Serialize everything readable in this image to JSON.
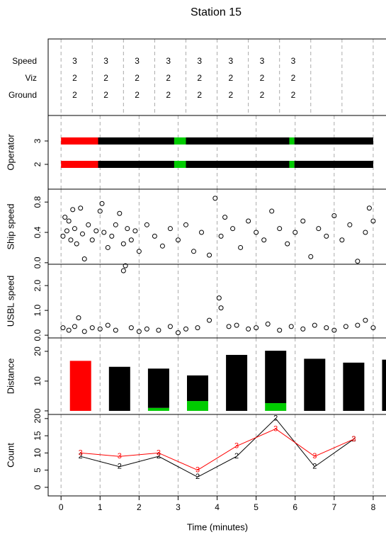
{
  "title": "Station 15",
  "chart_data": [
    {
      "type": "text-grid",
      "rows": [
        "Speed",
        "Viz",
        "Ground"
      ],
      "x": [
        0.35,
        1.15,
        1.95,
        2.75,
        3.55,
        4.35,
        5.15,
        5.95
      ],
      "values": [
        [
          3,
          3,
          3,
          3,
          3,
          3,
          3,
          3
        ],
        [
          2,
          2,
          2,
          2,
          2,
          2,
          2,
          2
        ],
        [
          2,
          2,
          2,
          2,
          2,
          2,
          2,
          2
        ]
      ],
      "xlim": [
        -0.33,
        8.31
      ],
      "vlines": [
        0,
        0.8,
        1.6,
        2.4,
        3.2,
        4,
        4.8,
        5.6,
        6.4,
        7.2,
        8
      ]
    },
    {
      "type": "segments",
      "ylabel": "Operator",
      "ylim": [
        0.94,
        4.09
      ],
      "yticks": [
        2,
        3
      ],
      "xlim": [
        -0.33,
        8.31
      ],
      "vlines": [
        0,
        1,
        2,
        3,
        4,
        5,
        6,
        7,
        8
      ],
      "rows": [
        {
          "y": 3,
          "segments": [
            {
              "start": 0,
              "end": 0.95,
              "color": "#ff0000"
            },
            {
              "start": 0.95,
              "end": 2.9,
              "color": "#000000"
            },
            {
              "start": 2.9,
              "end": 3.2,
              "color": "#00cc00"
            },
            {
              "start": 3.2,
              "end": 5.85,
              "color": "#000000"
            },
            {
              "start": 5.85,
              "end": 5.98,
              "color": "#00cc00"
            },
            {
              "start": 5.98,
              "end": 8,
              "color": "#000000"
            }
          ]
        },
        {
          "y": 2,
          "segments": [
            {
              "start": 0,
              "end": 0.95,
              "color": "#ff0000"
            },
            {
              "start": 0.95,
              "end": 2.9,
              "color": "#000000"
            },
            {
              "start": 2.9,
              "end": 3.2,
              "color": "#00cc00"
            },
            {
              "start": 3.2,
              "end": 5.85,
              "color": "#000000"
            },
            {
              "start": 5.85,
              "end": 5.98,
              "color": "#00cc00"
            },
            {
              "start": 5.98,
              "end": 8,
              "color": "#000000"
            }
          ]
        }
      ]
    },
    {
      "type": "scatter",
      "ylabel": "Ship speed",
      "ylim": [
        -0.02,
        0.97
      ],
      "yticks": [
        {
          "value": 0,
          "label": "0.0"
        },
        0.4,
        0.8
      ],
      "xlim": [
        -0.33,
        8.31
      ],
      "vlines": [
        0,
        1,
        2,
        3,
        4,
        5,
        6,
        7,
        8
      ],
      "color": "#000000",
      "x": [
        0.05,
        0.1,
        0.15,
        0.2,
        0.25,
        0.3,
        0.35,
        0.4,
        0.5,
        0.55,
        0.6,
        0.7,
        0.8,
        0.9,
        1.0,
        1.05,
        1.1,
        1.2,
        1.3,
        1.4,
        1.5,
        1.6,
        1.7,
        1.8,
        1.9,
        2.0,
        2.2,
        2.4,
        2.6,
        2.8,
        3.0,
        3.2,
        3.4,
        3.6,
        3.8,
        3.95,
        4.1,
        4.2,
        4.4,
        4.6,
        4.8,
        5.0,
        5.2,
        5.4,
        5.6,
        5.8,
        6.0,
        6.2,
        6.4,
        6.6,
        6.8,
        7.0,
        7.2,
        7.4,
        7.6,
        7.8,
        7.9,
        8.0
      ],
      "values": [
        0.35,
        0.6,
        0.42,
        0.55,
        0.3,
        0.7,
        0.45,
        0.25,
        0.72,
        0.38,
        0.05,
        0.5,
        0.3,
        0.42,
        0.68,
        0.78,
        0.4,
        0.2,
        0.35,
        0.5,
        0.65,
        0.25,
        0.45,
        0.3,
        0.42,
        0.15,
        0.5,
        0.35,
        0.22,
        0.45,
        0.3,
        0.5,
        0.15,
        0.4,
        0.1,
        0.85,
        0.35,
        0.6,
        0.45,
        0.2,
        0.55,
        0.4,
        0.3,
        0.68,
        0.45,
        0.25,
        0.4,
        0.55,
        0.08,
        0.45,
        0.35,
        0.62,
        0.3,
        0.5,
        0.02,
        0.4,
        0.72,
        0.55
      ]
    },
    {
      "type": "scatter",
      "ylabel": "USBL speed",
      "ylim": [
        -0.11,
        2.86
      ],
      "yticks": [
        {
          "value": 0,
          "label": "0.0"
        },
        {
          "value": 1,
          "label": "1.0"
        },
        {
          "value": 2,
          "label": "2.0"
        }
      ],
      "xlim": [
        -0.33,
        8.31
      ],
      "vlines": [
        0,
        1,
        2,
        3,
        4,
        5,
        6,
        7,
        8
      ],
      "color": "#000000",
      "x": [
        0.05,
        0.2,
        0.35,
        0.45,
        0.6,
        0.8,
        1.0,
        1.2,
        1.4,
        1.6,
        1.65,
        1.8,
        2.0,
        2.2,
        2.5,
        2.8,
        3.0,
        3.2,
        3.5,
        3.8,
        4.05,
        4.1,
        4.3,
        4.5,
        4.8,
        5.0,
        5.3,
        5.6,
        5.9,
        6.2,
        6.5,
        6.8,
        7.0,
        7.3,
        7.6,
        7.8,
        8.0
      ],
      "values": [
        0.3,
        0.2,
        0.35,
        0.7,
        0.15,
        0.3,
        0.25,
        0.4,
        0.2,
        2.6,
        2.8,
        0.3,
        0.15,
        0.25,
        0.2,
        0.35,
        0.1,
        0.25,
        0.3,
        0.6,
        1.5,
        1.1,
        0.35,
        0.4,
        0.25,
        0.3,
        0.45,
        0.2,
        0.35,
        0.25,
        0.4,
        0.3,
        0.2,
        0.35,
        0.4,
        0.6,
        0.3
      ]
    },
    {
      "type": "stacked-bar",
      "ylabel": "Distance",
      "ylim": [
        -1.2,
        24.5
      ],
      "yticks": [
        0,
        10,
        20
      ],
      "xlim": [
        -0.33,
        8.31
      ],
      "vlines": [
        0,
        1,
        2,
        3,
        4,
        5,
        6,
        7,
        8
      ],
      "x": [
        0.5,
        1.5,
        2.5,
        3.5,
        4.5,
        5.5,
        6.5,
        7.5,
        8.5
      ],
      "series": [
        {
          "color": "#00cc00",
          "values": [
            0,
            0,
            1,
            3.3,
            0,
            2.6,
            0,
            0,
            0
          ]
        },
        {
          "color": "#000000",
          "values": [
            0,
            14.8,
            13.2,
            8.6,
            18.8,
            17.6,
            17.5,
            16.2,
            17.2
          ]
        },
        {
          "color": "#ff0000",
          "values": [
            16.8,
            0,
            0,
            0,
            0,
            0,
            0,
            0,
            0
          ]
        }
      ]
    },
    {
      "type": "line",
      "ylabel": "Count",
      "ylim": [
        -2.5,
        21.2
      ],
      "yticks": [
        0,
        5,
        10,
        15,
        20
      ],
      "xlim": [
        -0.33,
        8.31
      ],
      "vlines": [
        0,
        1,
        2,
        3,
        4,
        5,
        6,
        7,
        8
      ],
      "xticks": [
        0,
        1,
        2,
        3,
        4,
        5,
        6,
        7,
        8
      ],
      "xlabel": "Time (minutes)",
      "x": [
        0.5,
        1.5,
        2.5,
        3.5,
        4.5,
        5.5,
        6.5,
        7.5
      ],
      "series": [
        {
          "color": "#000000",
          "marker": "2",
          "values": [
            9,
            6,
            9,
            3,
            9,
            20,
            6,
            14
          ]
        },
        {
          "color": "#ff0000",
          "marker": "3",
          "values": [
            10,
            9,
            10,
            5,
            12,
            17,
            9,
            14
          ]
        }
      ]
    }
  ]
}
